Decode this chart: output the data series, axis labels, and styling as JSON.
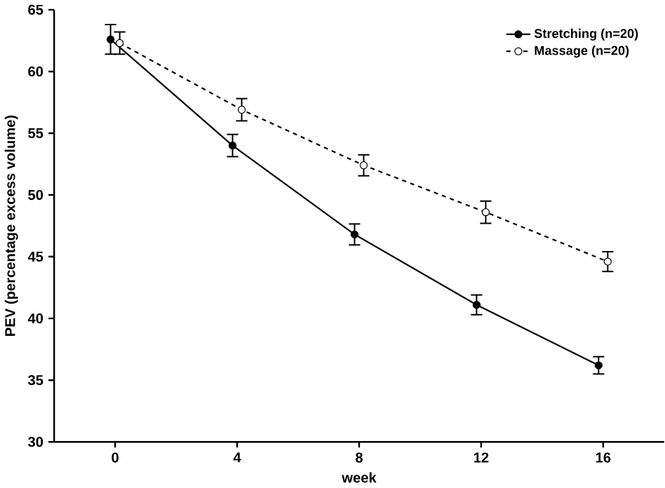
{
  "chart_data": {
    "type": "line",
    "xlabel": "week",
    "ylabel": "PEV (percentage excess volume)",
    "xlim": [
      -2,
      18
    ],
    "xticks": [
      0,
      4,
      8,
      12,
      16
    ],
    "ylim": [
      30,
      65
    ],
    "yticks": [
      30,
      35,
      40,
      45,
      50,
      55,
      60,
      65
    ],
    "legend": "top right",
    "marker": "circle",
    "series": [
      {
        "name": "Stretching (n=20)",
        "color": "#000000",
        "line_style": "solid",
        "x": [
          -0.15,
          3.85,
          7.85,
          11.85,
          15.85
        ],
        "values": [
          62.6,
          54.0,
          46.8,
          41.1,
          36.2
        ],
        "errors": [
          1.2,
          0.9,
          0.85,
          0.8,
          0.7
        ]
      },
      {
        "name": "Massage (n=20)",
        "color": "#000000",
        "line_style": "dashed",
        "x": [
          0.15,
          4.15,
          8.15,
          12.15,
          16.15
        ],
        "values": [
          62.3,
          56.9,
          52.4,
          48.6,
          44.6
        ],
        "errors": [
          0.9,
          0.9,
          0.85,
          0.9,
          0.8
        ]
      }
    ]
  }
}
